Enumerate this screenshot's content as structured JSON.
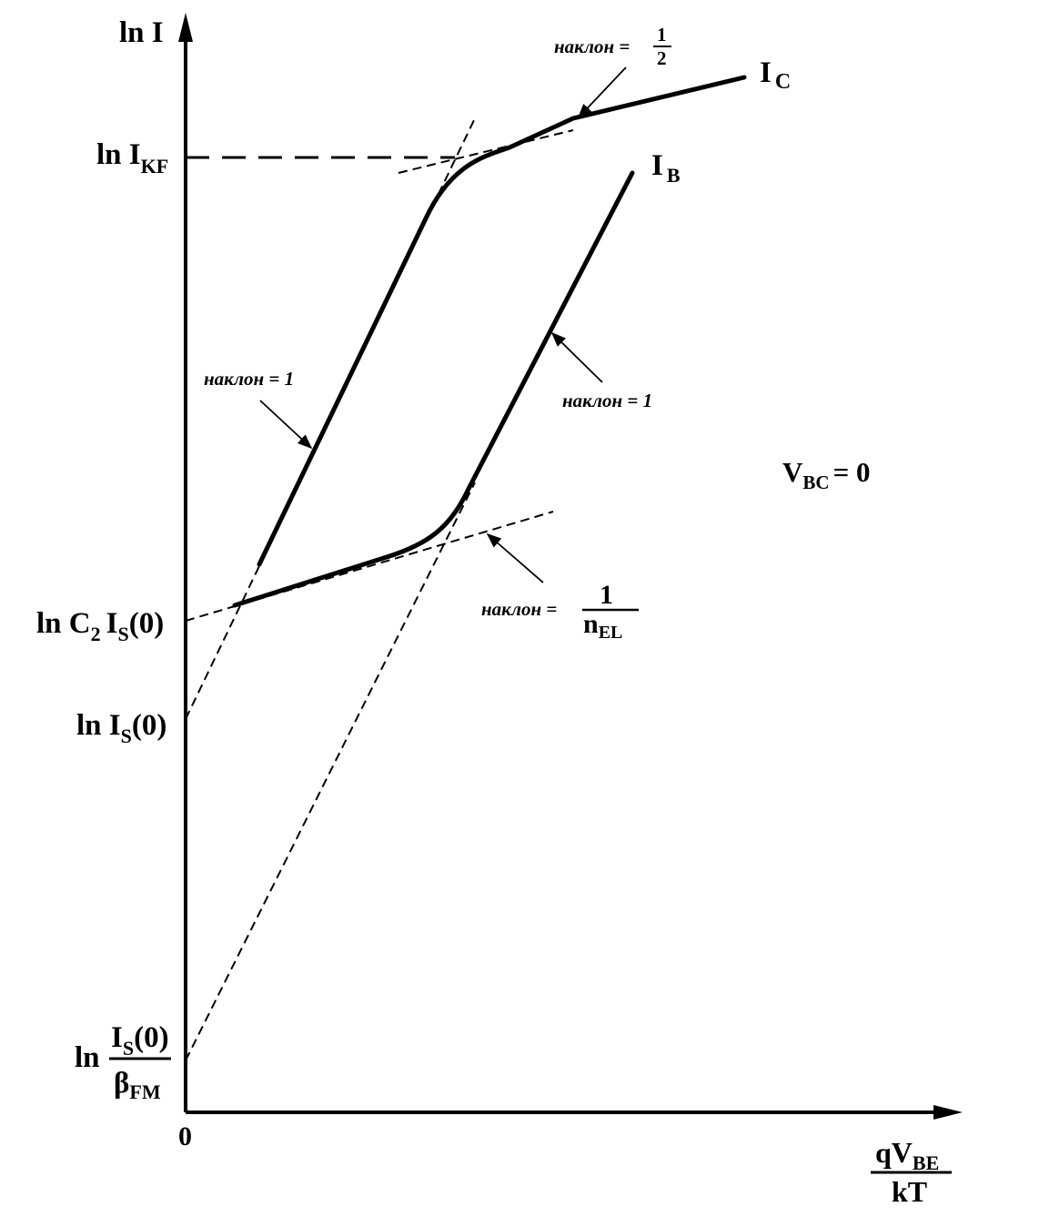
{
  "axes": {
    "y_label": {
      "main": "ln I"
    },
    "x_label": {
      "num_main": "qV",
      "num_sub": "BE",
      "den": "kT"
    },
    "origin": "0"
  },
  "y_ticks": {
    "ikf": {
      "main": "ln I",
      "sub": "KF"
    },
    "c2is": {
      "main": "ln C",
      "sub1": "2",
      "mid": "I",
      "sub2": "S",
      "tail": "(0)"
    },
    "is": {
      "main": "ln I",
      "sub": "S",
      "tail": "(0)"
    },
    "is_beta": {
      "ln": "ln",
      "num_main": "I",
      "num_sub": "S",
      "num_tail": "(0)",
      "den_main": "β",
      "den_sub": "FM"
    }
  },
  "curves": {
    "ic": {
      "main": "I",
      "sub": "C"
    },
    "ib": {
      "main": "I",
      "sub": "B"
    }
  },
  "annotations": {
    "slope_half": {
      "text": "наклон =",
      "num": "1",
      "den": "2"
    },
    "slope_one_ic": {
      "text": "наклон = 1"
    },
    "slope_one_ib": {
      "text": "наклон = 1"
    },
    "slope_nel": {
      "text": "наклон =",
      "num": "1",
      "den_main": "n",
      "den_sub": "EL"
    }
  },
  "condition": {
    "main": "V",
    "sub": "BC",
    "tail": "= 0"
  }
}
